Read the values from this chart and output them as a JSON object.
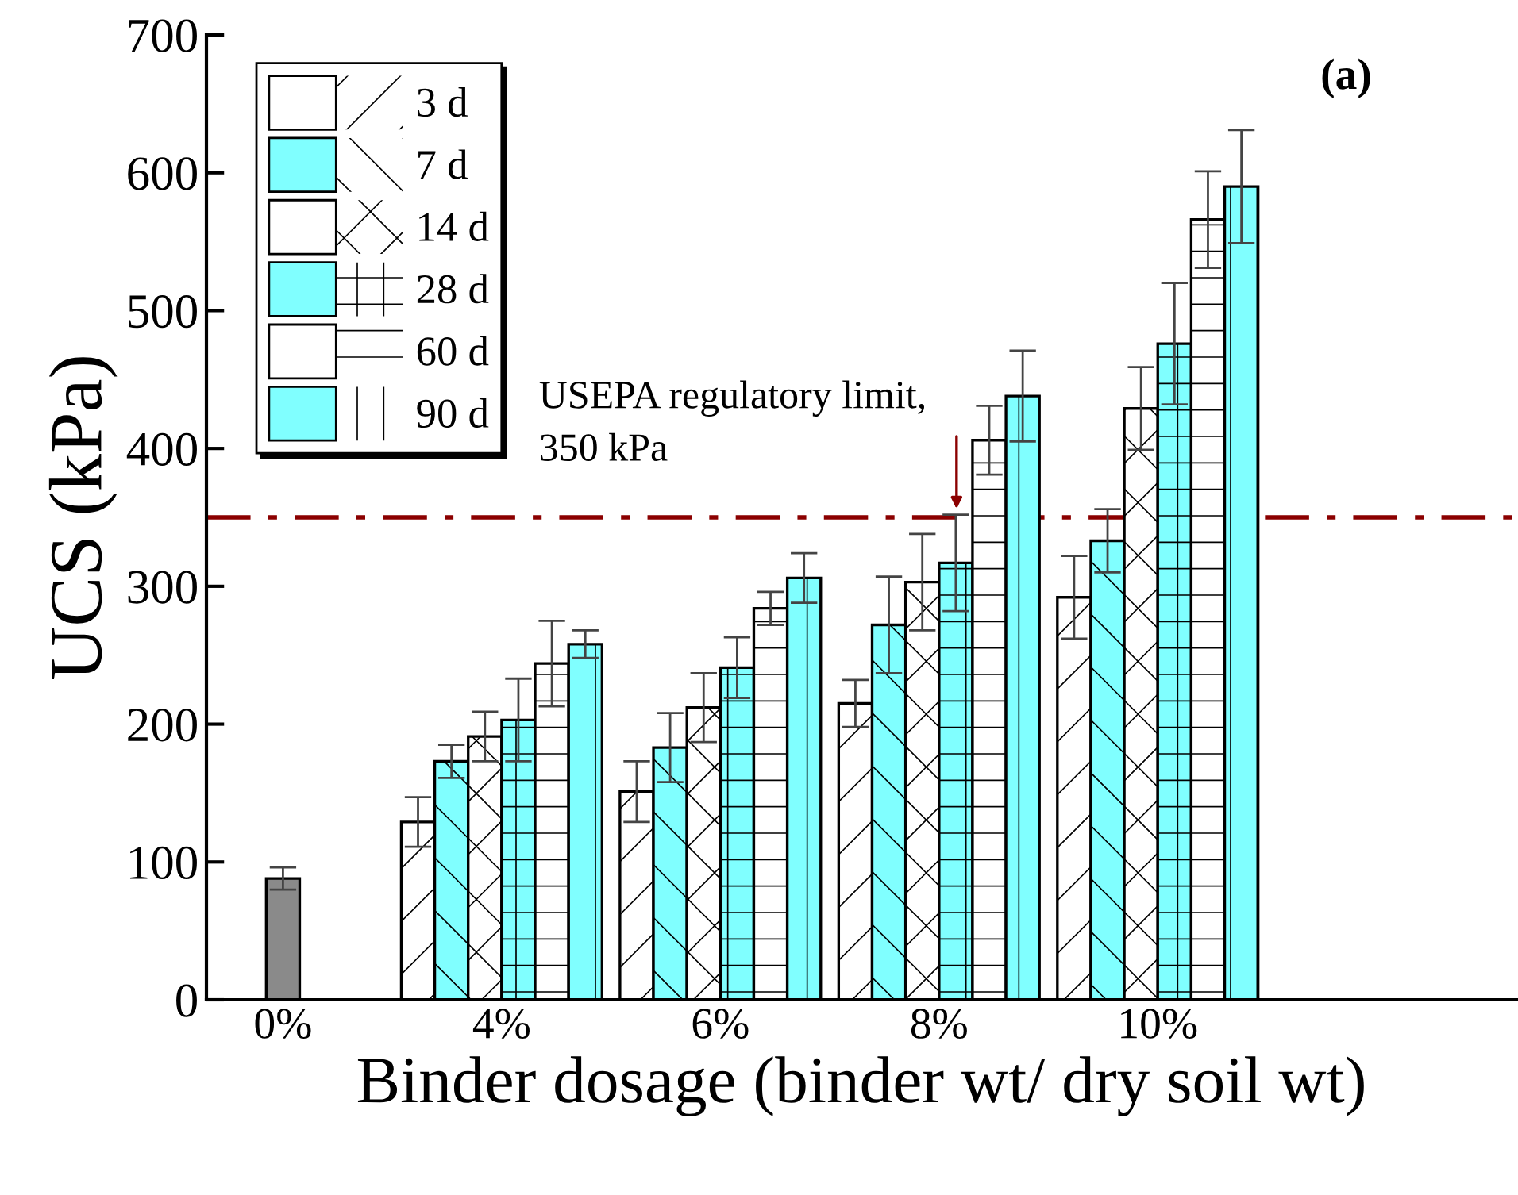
{
  "chart_data": {
    "type": "bar",
    "xlabel": "Binder dosage (binder wt/ dry soil wt)",
    "ylabel": "UCS (kPa)",
    "categories": [
      "0%",
      "4%",
      "6%",
      "8%",
      "10%"
    ],
    "ylim": [
      0,
      700
    ],
    "yticks": [
      0,
      100,
      200,
      300,
      400,
      500,
      600,
      700
    ],
    "series": [
      {
        "color": "#8a8a8a",
        "values": [
          88,
          null,
          null,
          null,
          null
        ],
        "errors": [
          8,
          null,
          null,
          null,
          null
        ]
      },
      {
        "name": "3 d",
        "color": "#ffffff",
        "values": [
          null,
          129,
          151,
          215,
          292
        ],
        "errors": [
          null,
          18,
          22,
          17,
          30
        ]
      },
      {
        "name": "7 d",
        "color": "#80ffff",
        "values": [
          null,
          173,
          183,
          272,
          333
        ],
        "errors": [
          null,
          12,
          25,
          35,
          23
        ]
      },
      {
        "name": "14 d",
        "color": "#ffffff",
        "values": [
          null,
          191,
          212,
          303,
          429
        ],
        "errors": [
          null,
          18,
          25,
          35,
          30
        ]
      },
      {
        "name": "28 d",
        "color": "#80ffff",
        "values": [
          null,
          203,
          241,
          317,
          476
        ],
        "errors": [
          null,
          30,
          22,
          35,
          44
        ]
      },
      {
        "name": "60 d",
        "color": "#ffffff",
        "values": [
          null,
          244,
          284,
          406,
          566
        ],
        "errors": [
          null,
          31,
          12,
          25,
          35
        ]
      },
      {
        "name": "90 d",
        "color": "#80ffff",
        "values": [
          null,
          258,
          306,
          438,
          590
        ],
        "errors": [
          null,
          10,
          18,
          33,
          41
        ]
      }
    ],
    "ref_lines": [
      {
        "axis": "y",
        "value": 350,
        "color": "#8b0000",
        "line_style": "dashdot"
      }
    ],
    "annotations": [
      {
        "text": "USEPA regulatory limit,\n350 kPa",
        "y": 350
      },
      "(a)"
    ],
    "legend": "top left",
    "grid": false
  }
}
